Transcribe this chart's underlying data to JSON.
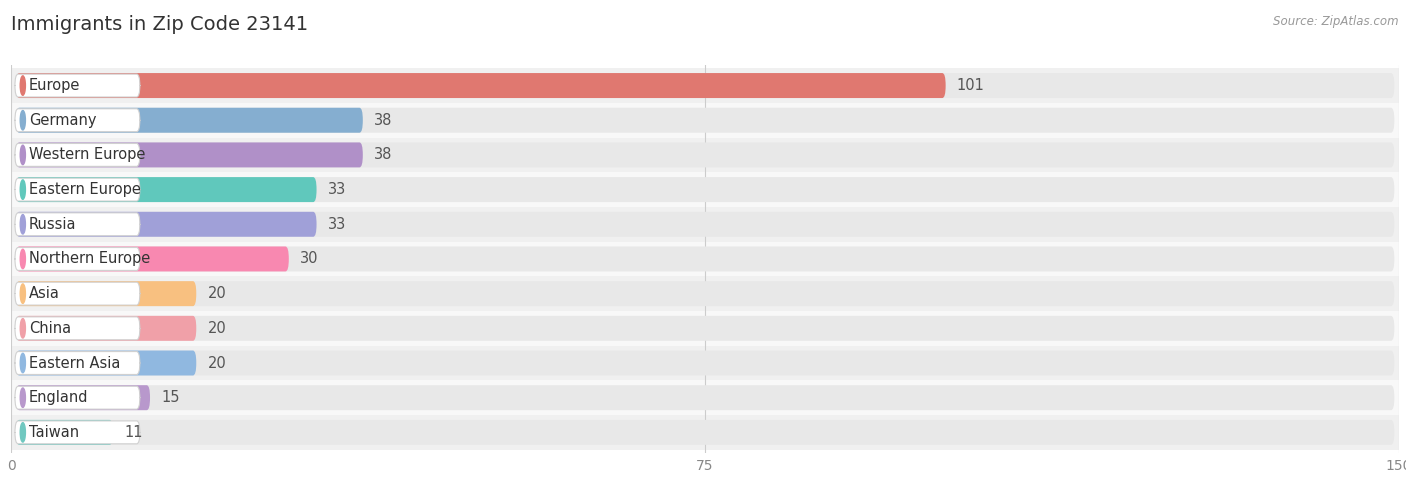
{
  "title": "Immigrants in Zip Code 23141",
  "source": "Source: ZipAtlas.com",
  "categories": [
    "Europe",
    "Germany",
    "Western Europe",
    "Eastern Europe",
    "Russia",
    "Northern Europe",
    "Asia",
    "China",
    "Eastern Asia",
    "England",
    "Taiwan"
  ],
  "values": [
    101,
    38,
    38,
    33,
    33,
    30,
    20,
    20,
    20,
    15,
    11
  ],
  "bar_colors": [
    "#e07870",
    "#85aed0",
    "#b090c8",
    "#60c8bc",
    "#a0a0d8",
    "#f888b0",
    "#f8c080",
    "#f0a0a8",
    "#90b8e0",
    "#b898cc",
    "#70c8c0"
  ],
  "xlim": [
    0,
    150
  ],
  "xticks": [
    0,
    75,
    150
  ],
  "bar_bg_color": "#e8e8e8",
  "row_bg_even": "#f0f0f0",
  "row_bg_odd": "#f8f8f8",
  "title_fontsize": 14,
  "label_fontsize": 10.5,
  "value_fontsize": 10.5,
  "bar_height": 0.72
}
